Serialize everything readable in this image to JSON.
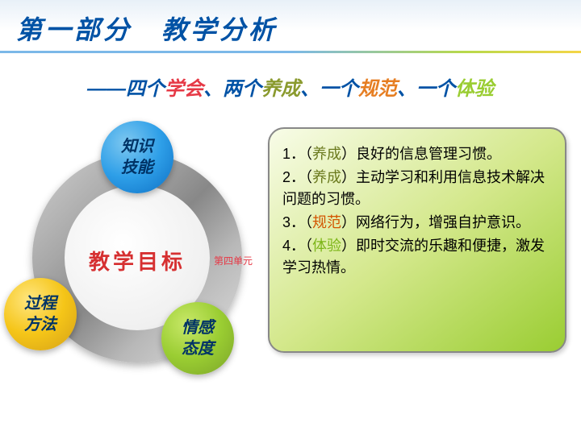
{
  "header": {
    "title": "第一部分　教学分析"
  },
  "subtitle": {
    "prefix": "——四个",
    "word1": "学会",
    "sep1": "、两个",
    "word2": "养成",
    "sep2": "、一个",
    "word3": "规范",
    "sep3": "、一个",
    "word4": "体验"
  },
  "diagram": {
    "center": "教学目标",
    "unit": "第四单元",
    "circles": {
      "blue_line1": "知识",
      "blue_line2": "技能",
      "yellow_line1": "过程",
      "yellow_line2": "方法",
      "green_line1": "情感",
      "green_line2": "态度"
    }
  },
  "content": {
    "item1_pre": "1．（",
    "item1_kw": "养成",
    "item1_post": "）良好的信息管理习惯。",
    "item2_pre": "2．（",
    "item2_kw": "养成",
    "item2_post": "）主动学习和利用信息技术解决问题的习惯。",
    "item3_pre": "3．（",
    "item3_kw": "规范",
    "item3_post": "）网络行为，增强自护意识。",
    "item4_pre": "4．（",
    "item4_kw": "体验",
    "item4_post": "）即时交流的乐趣和便捷，激发学习热情。"
  },
  "colors": {
    "title_blue": "#0052a5",
    "accent_red": "#e63946",
    "accent_olive": "#8a9a2e",
    "accent_orange": "#e67e22",
    "accent_lime": "#9acd32",
    "circle_blue": "#2e9fe8",
    "circle_yellow": "#f5c518",
    "circle_green": "#9acd32"
  }
}
